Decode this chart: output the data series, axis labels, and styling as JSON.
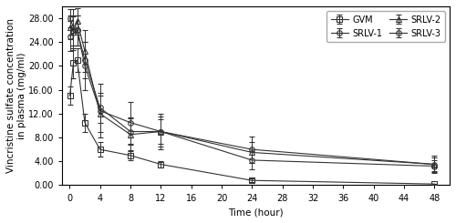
{
  "time": [
    0.03,
    0.5,
    1,
    2,
    4,
    8,
    12,
    24,
    48
  ],
  "GVM": {
    "mean": [
      15.0,
      20.5,
      21.0,
      10.5,
      6.0,
      5.0,
      3.5,
      0.8,
      0.2
    ],
    "sd": [
      1.5,
      2.5,
      2.0,
      1.5,
      1.2,
      0.8,
      0.6,
      0.3,
      0.1
    ]
  },
  "SRLV1": {
    "mean": [
      25.0,
      25.5,
      26.0,
      21.0,
      13.0,
      9.0,
      9.0,
      4.2,
      3.2
    ],
    "sd": [
      2.5,
      2.8,
      2.5,
      3.0,
      2.5,
      2.2,
      2.0,
      1.5,
      1.0
    ]
  },
  "SRLV2": {
    "mean": [
      26.5,
      26.0,
      27.5,
      22.5,
      12.0,
      8.5,
      9.0,
      5.5,
      3.5
    ],
    "sd": [
      2.0,
      2.5,
      2.2,
      3.5,
      3.0,
      2.8,
      2.5,
      1.8,
      1.2
    ]
  },
  "SRLV3": {
    "mean": [
      28.0,
      26.5,
      26.0,
      20.0,
      12.5,
      10.5,
      9.0,
      6.0,
      3.5
    ],
    "sd": [
      1.5,
      3.0,
      2.5,
      4.0,
      4.5,
      3.5,
      3.0,
      2.2,
      1.5
    ]
  },
  "xlabel": "Time (hour)",
  "ylabel": "Vincristine sulfate concentration\nin plasma (mg/ml)",
  "ylim": [
    0,
    30
  ],
  "yticks": [
    0.0,
    4.0,
    8.0,
    12.0,
    16.0,
    20.0,
    24.0,
    28.0
  ],
  "xticks": [
    0,
    4,
    8,
    12,
    16,
    20,
    24,
    28,
    32,
    36,
    40,
    44,
    48
  ],
  "line_color": "#333333",
  "bg_color": "#ffffff",
  "legend_labels": [
    "GVM",
    "SRLV-1",
    "SRLV-2",
    "SRLV-3"
  ],
  "markers": [
    "s",
    "o",
    "^",
    "o"
  ],
  "title_fontsize": 8,
  "label_fontsize": 7.5,
  "tick_fontsize": 7
}
